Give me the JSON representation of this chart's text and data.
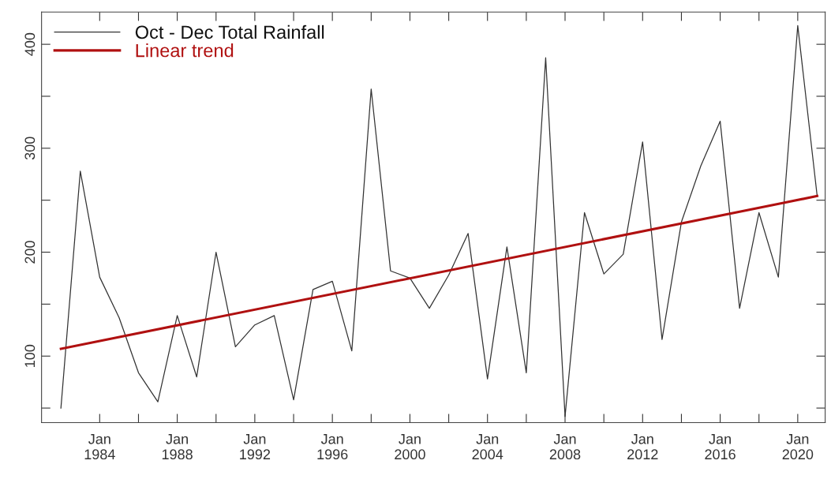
{
  "chart_data": {
    "type": "line",
    "x": [
      "1982",
      "1983",
      "1984",
      "1985",
      "1986",
      "1987",
      "1988",
      "1989",
      "1990",
      "1991",
      "1992",
      "1993",
      "1994",
      "1995",
      "1996",
      "1997",
      "1998",
      "1999",
      "2000",
      "2001",
      "2002",
      "2003",
      "2004",
      "2005",
      "2006",
      "2007",
      "2008",
      "2009",
      "2010",
      "2011",
      "2012",
      "2013",
      "2014",
      "2015",
      "2016",
      "2017",
      "2018",
      "2019",
      "2020",
      "2021"
    ],
    "series": [
      {
        "name": "Oct - Dec Total Rainfall",
        "color": "#333333",
        "values": [
          50,
          278,
          176,
          137,
          84,
          56,
          139,
          80,
          200,
          109,
          130,
          139,
          58,
          164,
          172,
          105,
          357,
          182,
          175,
          146,
          178,
          218,
          78,
          205,
          84,
          387,
          42,
          238,
          179,
          198,
          306,
          116,
          229,
          283,
          326,
          146,
          238,
          176,
          418,
          254
        ]
      },
      {
        "name": "Linear trend",
        "type": "line",
        "color": "#b01010",
        "x": [
          "1982",
          "2021"
        ],
        "values": [
          107,
          254
        ]
      }
    ],
    "xlim": [
      "1981-01",
      "2021-06"
    ],
    "xticks": [
      {
        "value": "1984",
        "label": "Jan\n1984"
      },
      {
        "value": "1986",
        "label": null
      },
      {
        "value": "1988",
        "label": "Jan\n1988"
      },
      {
        "value": "1990",
        "label": null
      },
      {
        "value": "1992",
        "label": "Jan\n1992"
      },
      {
        "value": "1994",
        "label": null
      },
      {
        "value": "1996",
        "label": "Jan\n1996"
      },
      {
        "value": "1998",
        "label": null
      },
      {
        "value": "2000",
        "label": "Jan\n2000"
      },
      {
        "value": "2002",
        "label": null
      },
      {
        "value": "2004",
        "label": "Jan\n2004"
      },
      {
        "value": "2006",
        "label": null
      },
      {
        "value": "2008",
        "label": "Jan\n2008"
      },
      {
        "value": "2010",
        "label": null
      },
      {
        "value": "2012",
        "label": "Jan\n2012"
      },
      {
        "value": "2014",
        "label": null
      },
      {
        "value": "2016",
        "label": "Jan\n2016"
      },
      {
        "value": "2018",
        "label": null
      },
      {
        "value": "2020",
        "label": "Jan\n2020"
      }
    ],
    "ylim": [
      36,
      431
    ],
    "yticks": [
      {
        "value": 50,
        "label": null
      },
      100,
      {
        "value": 150,
        "label": null
      },
      200,
      {
        "value": 250,
        "label": null
      },
      300,
      {
        "value": 350,
        "label": null
      },
      400
    ],
    "legend": "top left",
    "grid": false,
    "line_style": "solid",
    "marker": "none"
  }
}
